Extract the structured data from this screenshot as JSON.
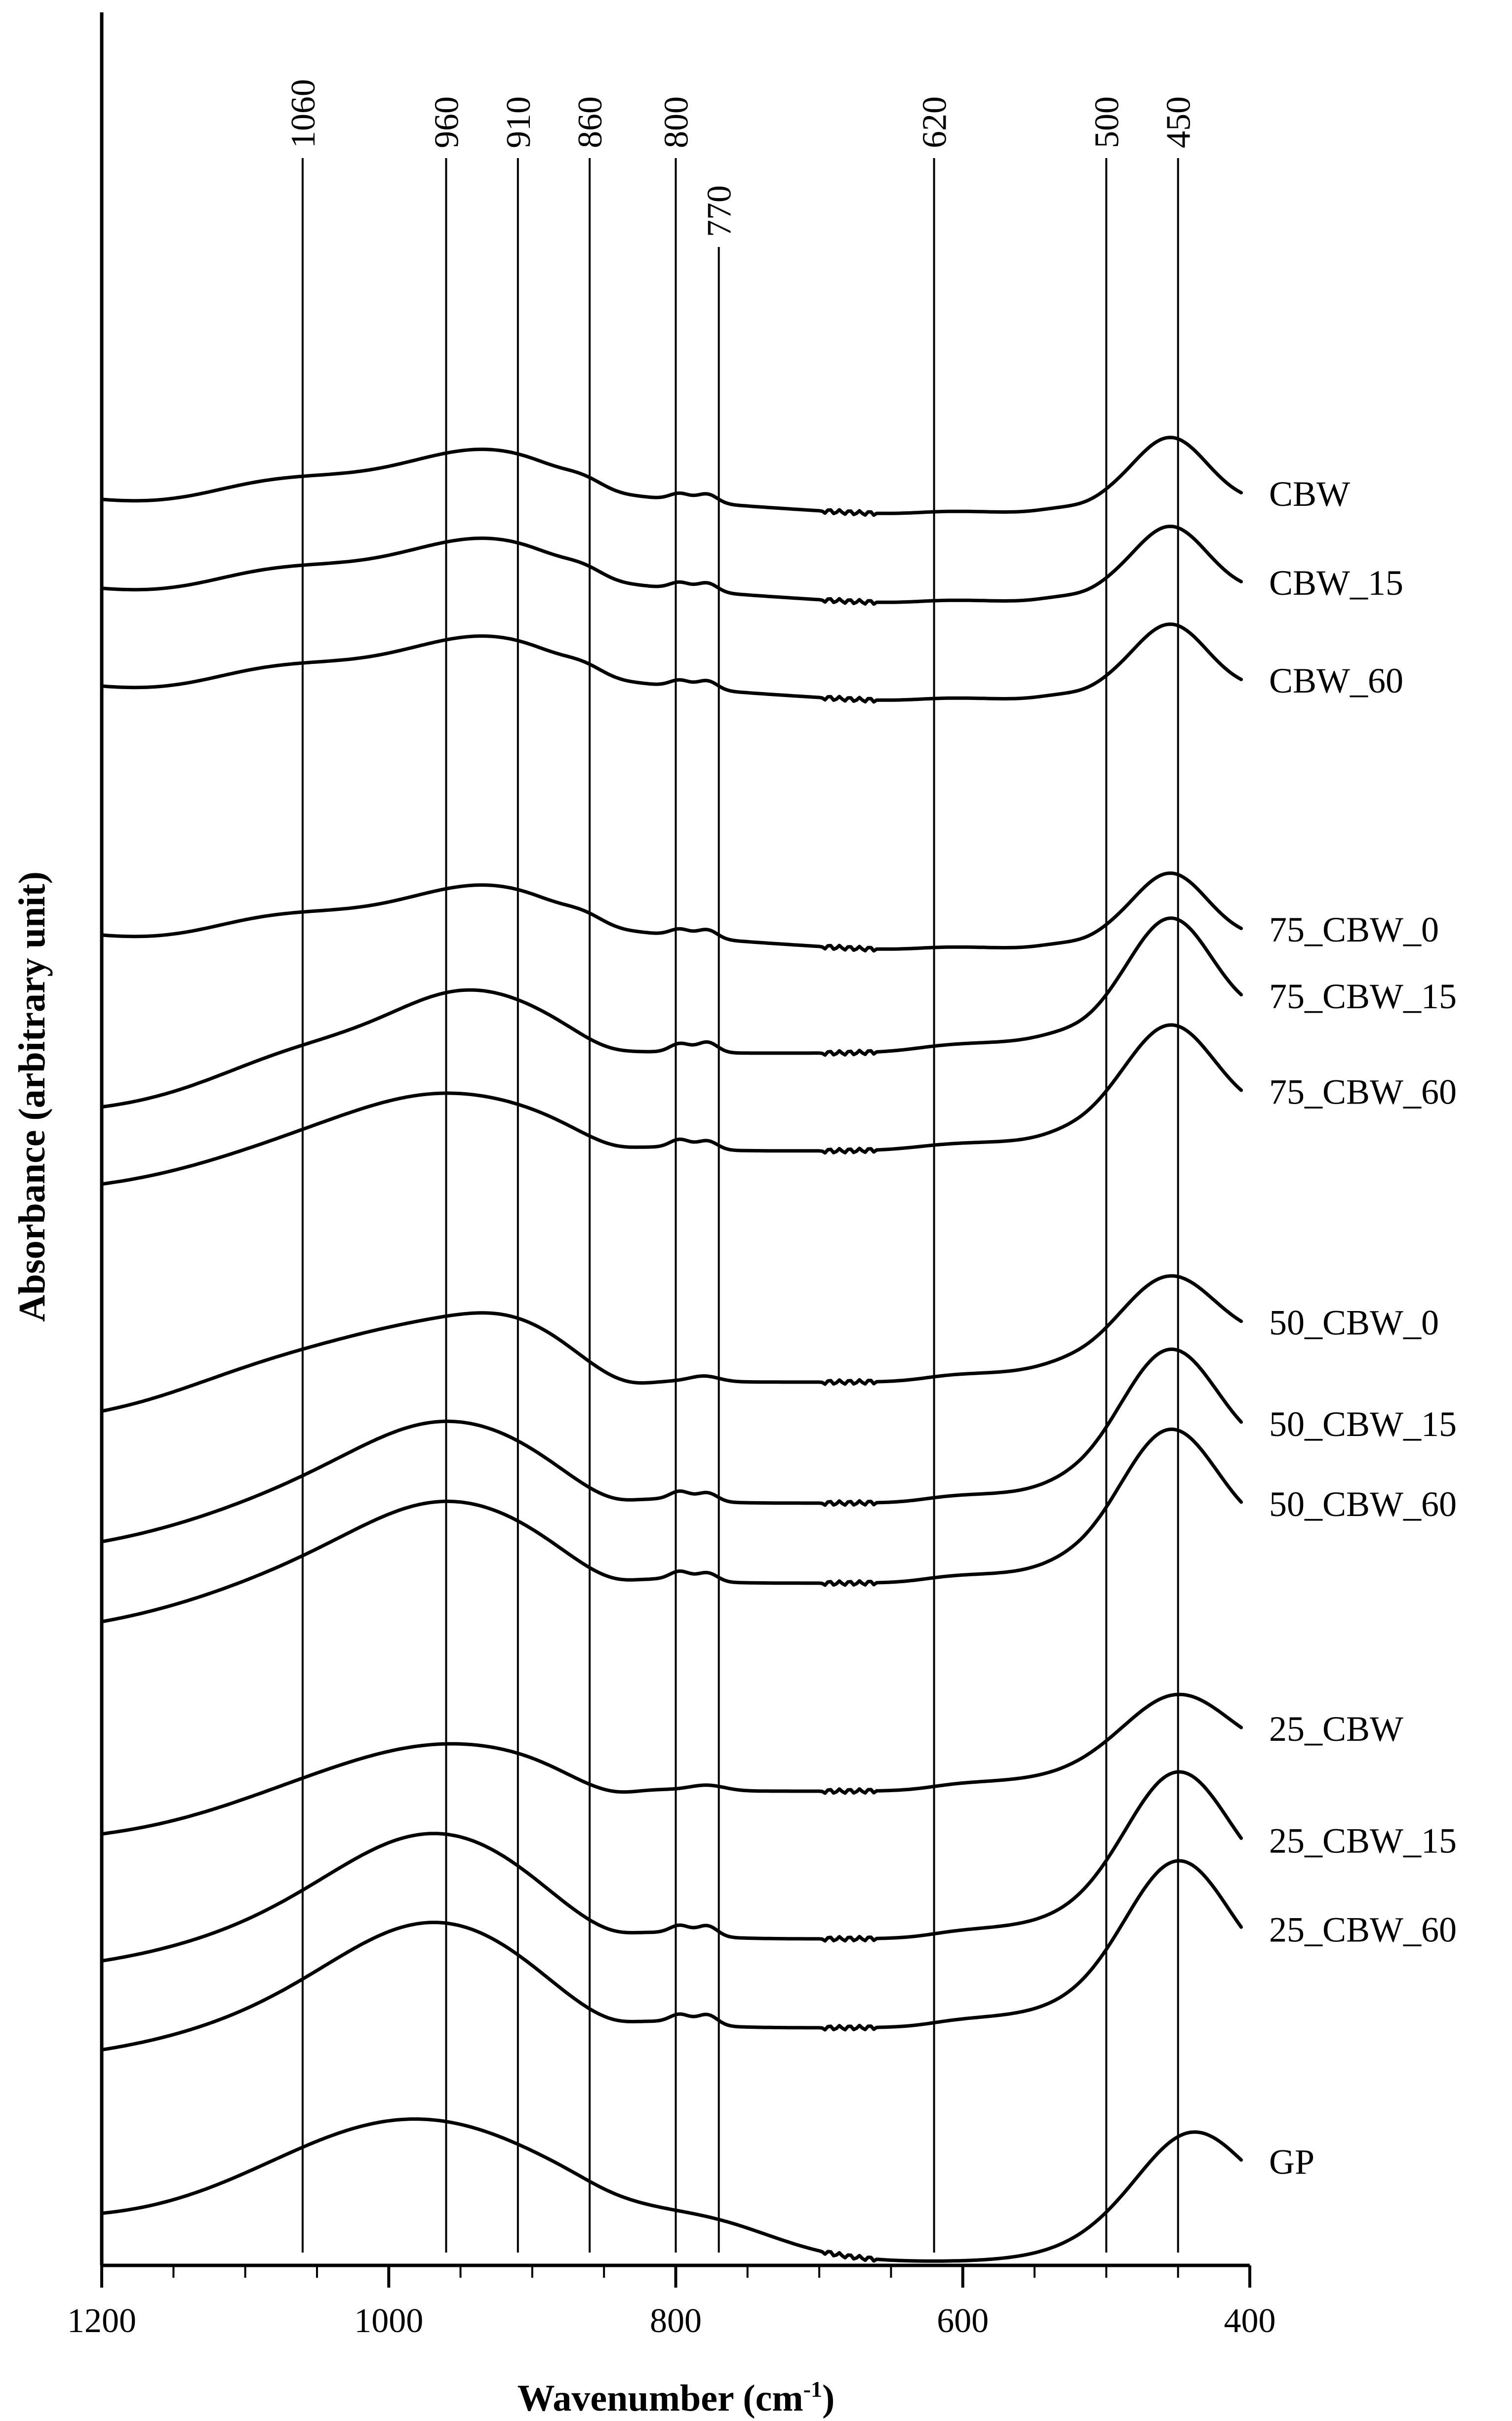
{
  "chart_data": {
    "type": "line",
    "title": "",
    "xlabel": "Wavenumber (cm",
    "xlabel_sup": "-1",
    "xlabel_end": ")",
    "ylabel": "Absorbance (arbitrary unit)",
    "xlim": [
      1200,
      400
    ],
    "x_reversed": true,
    "y_ticks_shown": false,
    "grid": false,
    "legend": "none",
    "x_ticks": [
      "1200",
      "1000",
      "800",
      "600",
      "400"
    ],
    "reference_lines": [
      {
        "x": 1060,
        "label": "1060"
      },
      {
        "x": 960,
        "label": "960"
      },
      {
        "x": 910,
        "label": "910"
      },
      {
        "x": 860,
        "label": "860"
      },
      {
        "x": 800,
        "label": "800"
      },
      {
        "x": 770,
        "label": "770"
      },
      {
        "x": 620,
        "label": "620"
      },
      {
        "x": 500,
        "label": "500"
      },
      {
        "x": 450,
        "label": "450"
      }
    ],
    "series": [
      {
        "name": "CBW",
        "offset": 10.3,
        "profile": "cbw"
      },
      {
        "name": "CBW_15",
        "offset": 9.8,
        "profile": "cbw"
      },
      {
        "name": "CBW_60",
        "offset": 9.25,
        "profile": "cbw"
      },
      {
        "name": "75_CBW_0",
        "offset": 7.85,
        "profile": "cbw"
      },
      {
        "name": "75_CBW_15",
        "offset": 7.25,
        "profile": "c75"
      },
      {
        "name": "75_CBW_60",
        "offset": 6.8,
        "profile": "c75b"
      },
      {
        "name": "50_CBW_0",
        "offset": 5.5,
        "profile": "c50"
      },
      {
        "name": "50_CBW_15",
        "offset": 4.85,
        "profile": "c50b"
      },
      {
        "name": "50_CBW_60",
        "offset": 4.4,
        "profile": "c50b"
      },
      {
        "name": "25_CBW",
        "offset": 3.15,
        "profile": "c25"
      },
      {
        "name": "25_CBW_15",
        "offset": 2.55,
        "profile": "c25b"
      },
      {
        "name": "25_CBW_60",
        "offset": 2.05,
        "profile": "c25b"
      },
      {
        "name": "GP",
        "offset": 0.8,
        "profile": "gp"
      }
    ]
  }
}
